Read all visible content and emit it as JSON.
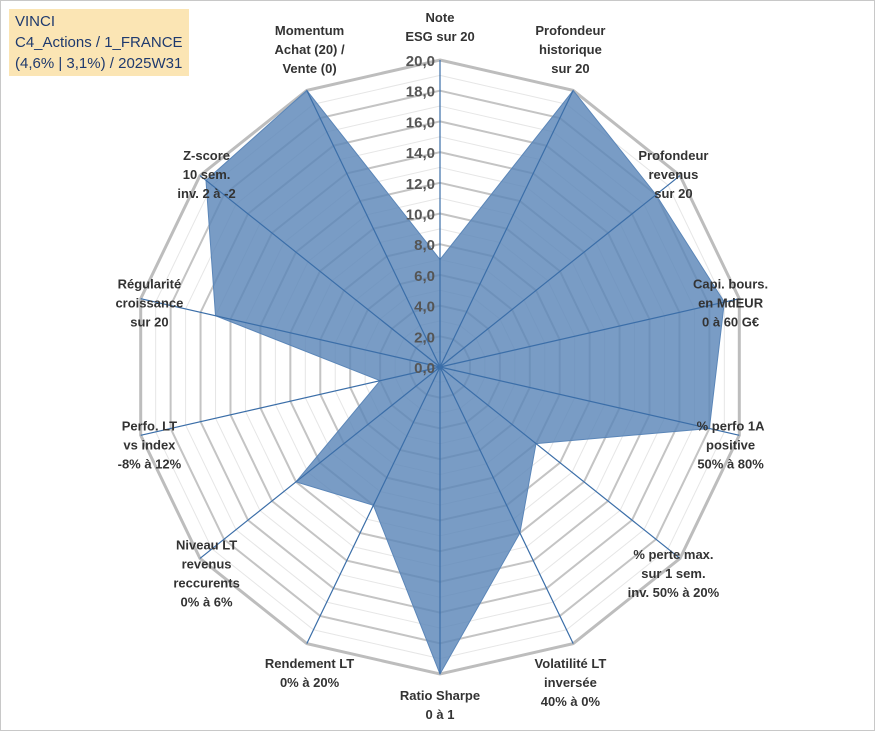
{
  "header": {
    "line1": "VINCI",
    "line2": "C4_Actions / 1_FRANCE",
    "line3": "(4,6% | 3,1%) / 2025W31"
  },
  "chart_data": {
    "type": "radar",
    "rlim": [
      0,
      20
    ],
    "ticks": [
      "0,0",
      "2,0",
      "4,0",
      "6,0",
      "8,0",
      "10,0",
      "12,0",
      "14,0",
      "16,0",
      "18,0",
      "20,0"
    ],
    "categories": [
      [
        "Note",
        "ESG sur 20"
      ],
      [
        "Profondeur",
        "historique",
        "sur 20"
      ],
      [
        "Profondeur",
        "revenus",
        "sur 20"
      ],
      [
        "Capi. bours.",
        "en MdEUR",
        "0 à 60 G€"
      ],
      [
        "% perfo 1A",
        "positive",
        "50% à 80%"
      ],
      [
        "% perte max.",
        "sur 1 sem.",
        "inv. 50% à 20%"
      ],
      [
        "Volatilité LT",
        "inversée",
        "40% à 0%"
      ],
      [
        "Ratio Sharpe",
        "0 à 1"
      ],
      [
        "Rendement LT",
        "0% à 20%"
      ],
      [
        "Niveau LT",
        "revenus",
        "reccurents",
        "0% à 6%"
      ],
      [
        "Perfo. LT",
        "vs index",
        "-8% à 12%"
      ],
      [
        "Régularité",
        "croissance",
        "sur 20"
      ],
      [
        "Z-score",
        "10 sem.",
        "inv. 2 à -2"
      ],
      [
        "Momentum",
        "Achat (20) /",
        "Vente (0)"
      ]
    ],
    "series": [
      {
        "values": [
          7.0,
          20.0,
          18.0,
          19.0,
          18.0,
          8.0,
          12.0,
          20.0,
          10.0,
          12.0,
          4.0,
          15.0,
          19.5,
          20.0
        ]
      }
    ],
    "colors": {
      "fill": "#5b86b8",
      "line": "#3b6ea8",
      "grid": "#c0c0c0",
      "outer": "#bdbdbd"
    },
    "grid": true
  }
}
